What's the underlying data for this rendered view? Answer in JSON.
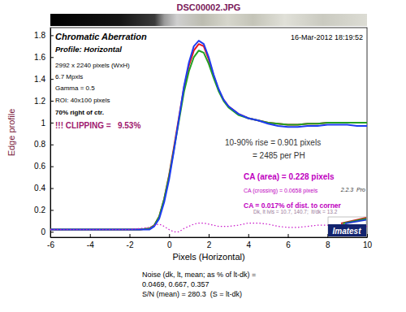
{
  "chart_data": {
    "type": "line",
    "title": "DSC00002.JPG",
    "xlabel": "Pixels (Horizontal)",
    "ylabel": "Edge profile",
    "grid": false,
    "xlim": [
      -6,
      10
    ],
    "ylim": [
      -0.05,
      1.87
    ],
    "xticks": [
      -6,
      -4,
      -2,
      0,
      2,
      4,
      6,
      8,
      10
    ],
    "yticks": [
      0,
      0.2,
      0.4,
      0.6,
      0.8,
      1,
      1.2,
      1.4,
      1.6,
      1.8
    ],
    "x": [
      -6,
      -5,
      -4,
      -3,
      -2,
      -1.5,
      -1,
      -0.75,
      -0.5,
      -0.25,
      0,
      0.25,
      0.5,
      0.75,
      1,
      1.25,
      1.5,
      1.75,
      2,
      2.25,
      2.5,
      2.75,
      3,
      3.5,
      4,
      4.5,
      5,
      5.5,
      6,
      6.5,
      7,
      7.5,
      8,
      8.5,
      9,
      9.5,
      10
    ],
    "series": [
      {
        "color": "#e8141e",
        "line_style": "solid",
        "values": [
          0.02,
          0.02,
          0.02,
          0.02,
          0.02,
          0.02,
          0.03,
          0.06,
          0.14,
          0.3,
          0.52,
          0.78,
          1.05,
          1.32,
          1.52,
          1.66,
          1.72,
          1.7,
          1.58,
          1.43,
          1.3,
          1.21,
          1.15,
          1.08,
          1.04,
          1.02,
          1.0,
          0.99,
          0.98,
          0.98,
          0.99,
          0.99,
          1.0,
          1.0,
          1.0,
          1.0,
          1.0
        ]
      },
      {
        "color": "#22a022",
        "line_style": "solid",
        "values": [
          0.02,
          0.02,
          0.02,
          0.02,
          0.02,
          0.02,
          0.03,
          0.06,
          0.14,
          0.3,
          0.51,
          0.76,
          1.02,
          1.28,
          1.47,
          1.6,
          1.66,
          1.64,
          1.54,
          1.41,
          1.29,
          1.2,
          1.14,
          1.07,
          1.04,
          1.02,
          1.0,
          0.99,
          0.98,
          0.98,
          0.99,
          0.99,
          1.0,
          1.0,
          1.0,
          1.0,
          1.0
        ]
      },
      {
        "color": "#1e3cf0",
        "line_style": "solid",
        "values": [
          0.02,
          0.02,
          0.02,
          0.02,
          0.02,
          0.02,
          0.02,
          0.05,
          0.12,
          0.27,
          0.48,
          0.75,
          1.04,
          1.33,
          1.55,
          1.7,
          1.75,
          1.72,
          1.6,
          1.44,
          1.31,
          1.21,
          1.15,
          1.08,
          1.04,
          1.02,
          0.99,
          0.97,
          0.96,
          0.96,
          0.97,
          0.97,
          0.98,
          0.98,
          0.98,
          0.97,
          0.97
        ]
      },
      {
        "color": "#c814c8",
        "line_style": "dotted",
        "values": [
          0.02,
          0.02,
          0.02,
          0.02,
          0.02,
          0.03,
          0.04,
          0.06,
          0.07,
          0.05,
          0.02,
          0.0,
          0.0,
          0.03,
          0.05,
          0.07,
          0.08,
          0.08,
          0.07,
          0.06,
          0.05,
          0.05,
          0.05,
          0.06,
          0.08,
          0.08,
          0.07,
          0.05,
          0.04,
          0.04,
          0.05,
          0.06,
          0.06,
          0.06,
          0.05,
          0.05,
          0.05
        ]
      }
    ],
    "annotations": [
      "Chromatic Aberration",
      "16-Mar-2012 18:19:52",
      "Profile: Horizontal",
      "2992 x 2240 pixels (WxH)",
      "6.7 Mpxls",
      "Gamma = 0.5",
      "ROI: 40x100 pixels",
      "70% right of ctr.",
      "!!! CLIPPING =   9.53%",
      "10-90% rise = 0.901 pixels",
      "= 2485 per PH",
      "CA (area) = 0.228 pixels",
      "CA (crossing) = 0.0658 pixels",
      "CA = 0.017% of dist. to corner",
      "2.2.3  Pro",
      "Dk, lt lvls = 10.7, 140.7;  lt/dk = 13.2",
      "Imatest",
      "Noise (dk, lt, mean; as % of lt-dk) =",
      "0.0469, 0.667, 0.357",
      "S/N (mean) = 280.3  (S = lt-dk)"
    ]
  }
}
